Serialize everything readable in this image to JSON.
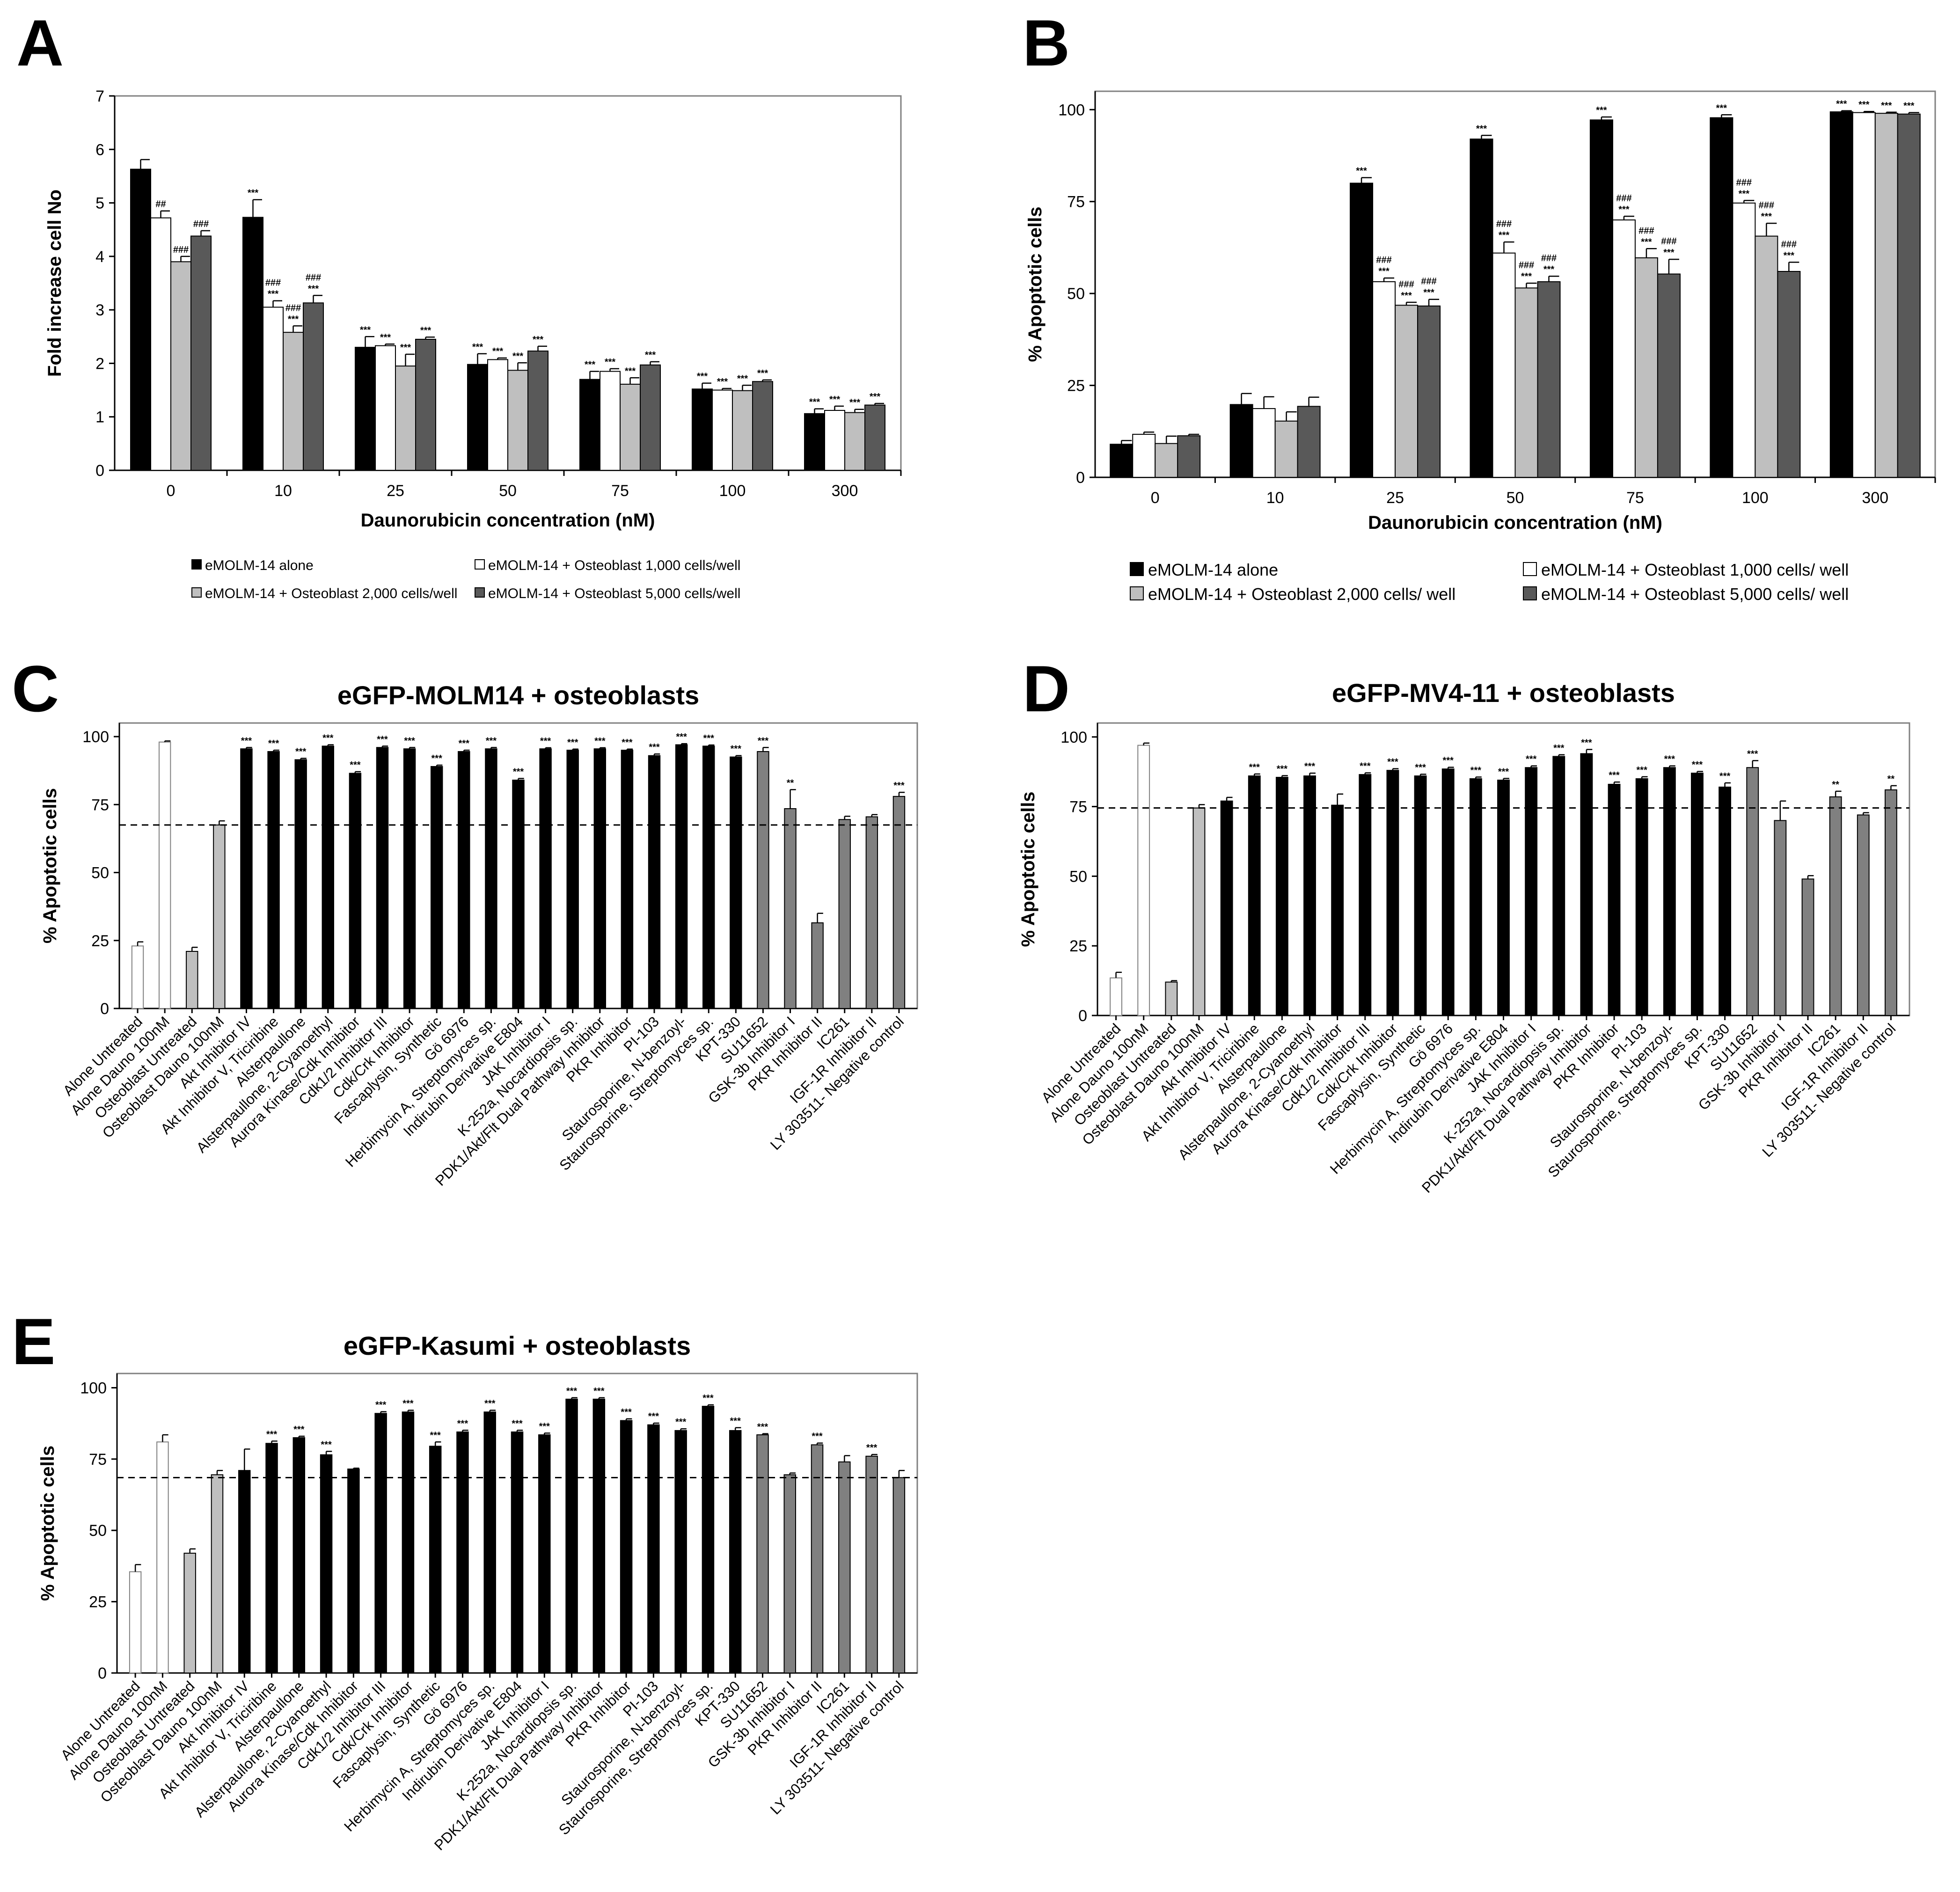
{
  "chart_data": [
    {
      "panel": "A",
      "type": "bar",
      "title": "",
      "xlabel": "Daunorubicin concentration (nM)",
      "ylabel": "Fold increase cell No",
      "ylim": [
        0,
        7
      ],
      "yticks": [
        "0",
        "1",
        "2",
        "3",
        "4",
        "5",
        "6",
        "7"
      ],
      "categories": [
        "0",
        "10",
        "25",
        "50",
        "75",
        "100",
        "300"
      ],
      "series": [
        {
          "name": "eMOLM-14 alone",
          "color": "#000000",
          "values": [
            5.63,
            4.73,
            2.3,
            1.98,
            1.7,
            1.52,
            1.06
          ],
          "errors": [
            0.18,
            0.33,
            0.2,
            0.2,
            0.15,
            0.11,
            0.09
          ],
          "annotations": [
            "",
            "***",
            "***",
            "***",
            "***",
            "***",
            "***"
          ]
        },
        {
          "name": "eMOLM-14 + Osteoblast 1,000 cells/well",
          "color": "#ffffff",
          "values": [
            4.72,
            3.05,
            2.33,
            2.07,
            1.85,
            1.5,
            1.12
          ],
          "errors": [
            0.13,
            0.12,
            0.03,
            0.03,
            0.05,
            0.03,
            0.08
          ],
          "annotations": [
            "##",
            "###\n***",
            "***",
            "***",
            "***",
            "***",
            "***"
          ]
        },
        {
          "name": "eMOLM-14 + Osteoblast 2,000 cells/well",
          "color": "#bfbfbf",
          "values": [
            3.9,
            2.58,
            1.95,
            1.87,
            1.61,
            1.49,
            1.08
          ],
          "errors": [
            0.1,
            0.12,
            0.22,
            0.14,
            0.12,
            0.1,
            0.06
          ],
          "annotations": [
            "###",
            "###\n***",
            "***",
            "***",
            "***",
            "***",
            "***"
          ]
        },
        {
          "name": "eMOLM-14 + Osteoblast 5,000 cells/well",
          "color": "#595959",
          "values": [
            4.38,
            3.13,
            2.45,
            2.23,
            1.97,
            1.66,
            1.22
          ],
          "errors": [
            0.1,
            0.14,
            0.04,
            0.09,
            0.06,
            0.03,
            0.03
          ],
          "annotations": [
            "###",
            "###\n***",
            "***",
            "***",
            "***",
            "***",
            "***"
          ]
        }
      ]
    },
    {
      "panel": "B",
      "type": "bar",
      "title": "",
      "xlabel": "Daunorubicin concentration (nM)",
      "ylabel": "% Apoptotic cells",
      "ylim": [
        0,
        105
      ],
      "yticks": [
        "0",
        "25",
        "50",
        "75",
        "100"
      ],
      "categories": [
        "0",
        "10",
        "25",
        "50",
        "75",
        "100",
        "300"
      ],
      "series": [
        {
          "name": "eMOLM-14 alone",
          "color": "#000000",
          "values": [
            9.0,
            19.8,
            80.0,
            92.0,
            97.2,
            97.8,
            99.4
          ],
          "errors": [
            1.0,
            3.0,
            1.5,
            1.0,
            0.8,
            0.8,
            0.3
          ],
          "annotations": [
            "",
            "",
            "***",
            "***",
            "***",
            "***",
            "***"
          ]
        },
        {
          "name": "eMOLM-14 + Osteoblast 1,000 cells/ well",
          "color": "#ffffff",
          "values": [
            11.7,
            18.7,
            53.2,
            61.0,
            70.0,
            74.6,
            99.2
          ],
          "errors": [
            0.6,
            3.2,
            1.0,
            3.0,
            1.0,
            0.7,
            0.3
          ],
          "annotations": [
            "",
            "",
            "###\n***",
            "###\n***",
            "###\n***",
            "###\n***",
            "***"
          ]
        },
        {
          "name": "eMOLM-14 + Osteoblast 2,000 cells/ well",
          "color": "#bfbfbf",
          "values": [
            9.2,
            15.3,
            46.8,
            51.5,
            59.7,
            65.6,
            99.0
          ],
          "errors": [
            2.0,
            2.5,
            0.8,
            1.3,
            2.5,
            3.5,
            0.3
          ],
          "annotations": [
            "",
            "",
            "###\n***",
            "###\n***",
            "###\n***",
            "###\n***",
            "***"
          ]
        },
        {
          "name": "eMOLM-14 + Osteoblast 5,000 cells/ well",
          "color": "#595959",
          "values": [
            11.3,
            19.3,
            46.6,
            53.2,
            55.3,
            56.0,
            98.8
          ],
          "errors": [
            0.4,
            2.5,
            1.8,
            1.5,
            4.0,
            2.5,
            0.4
          ],
          "annotations": [
            "",
            "",
            "###\n***",
            "###\n***",
            "###\n***",
            "###\n***",
            "***"
          ]
        }
      ]
    },
    {
      "panel": "C",
      "type": "bar",
      "title": "eGFP-MOLM14 + osteoblasts",
      "xlabel": "",
      "ylabel": "% Apoptotic cells",
      "ylim": [
        0,
        105
      ],
      "yticks": [
        "0",
        "25",
        "50",
        "75",
        "100"
      ],
      "reference_line": 67.5,
      "categories": [
        "Alone Untreated",
        "Alone Dauno 100nM",
        "Osteoblast Untreated",
        "Osteoblast Dauno 100nM",
        "Akt Inhibitor IV",
        "Akt Inhibitor V, Triciribine",
        "Alsterpaullone",
        "Alsterpaullone, 2-Cyanoethyl",
        "Aurora Kinase/Cdk Inhibitor",
        "Cdk1/2 Inhibitor III",
        "Cdk/Crk Inhibitor",
        "Fascaplysin, Synthetic",
        "Gö 6976",
        "Herbimycin A, Streptomyces sp.",
        "Indirubin Derivative E804",
        "JAK Inhibitor I",
        "K-252a, Nocardiopsis sp.",
        "PDK1/Akt/Flt Dual Pathway Inhibitor",
        "PKR Inhibitor",
        "PI-103",
        "Staurosporine, N-benzoyl-",
        "Staurosporine, Streptomyces sp.",
        "KPT-330",
        "SU11652",
        "GSK-3b Inhibitor I",
        "PKR Inhibitor II",
        "IC261",
        "IGF-1R Inhibitor II",
        "LY 303511- Negative control"
      ],
      "values": [
        23,
        98,
        21,
        67.5,
        95.5,
        94.5,
        91.5,
        96.5,
        86.5,
        96,
        95.5,
        89,
        94.5,
        95.5,
        84,
        95.5,
        95,
        95.5,
        95,
        93,
        97,
        96.5,
        92.5,
        94.5,
        73.5,
        31.5,
        69.5,
        70.5,
        78
      ],
      "errors": [
        1.5,
        0.4,
        1.5,
        1.5,
        0.5,
        0.5,
        0.5,
        0.5,
        0.6,
        0.5,
        0.5,
        0.5,
        0.5,
        0.5,
        0.6,
        0.4,
        0.4,
        0.4,
        0.4,
        0.6,
        0.4,
        0.4,
        0.5,
        1.5,
        7,
        3.5,
        1.2,
        0.8,
        1.5
      ],
      "annotations": [
        "",
        "",
        "",
        "",
        "***",
        "***",
        "***",
        "***",
        "***",
        "***",
        "***",
        "***",
        "***",
        "***",
        "***",
        "***",
        "***",
        "***",
        "***",
        "***",
        "***",
        "***",
        "***",
        "***",
        "**",
        "",
        "",
        "",
        "***"
      ],
      "colors": [
        "#ffffff",
        "#ffffff",
        "#bfbfbf",
        "#bfbfbf",
        "#000000",
        "#000000",
        "#000000",
        "#000000",
        "#000000",
        "#000000",
        "#000000",
        "#000000",
        "#000000",
        "#000000",
        "#000000",
        "#000000",
        "#000000",
        "#000000",
        "#000000",
        "#000000",
        "#000000",
        "#000000",
        "#000000",
        "#808080",
        "#808080",
        "#808080",
        "#808080",
        "#808080",
        "#808080"
      ]
    },
    {
      "panel": "D",
      "type": "bar",
      "title": "eGFP-MV4-11 + osteoblasts",
      "xlabel": "",
      "ylabel": "% Apoptotic cells",
      "ylim": [
        0,
        105
      ],
      "yticks": [
        "0",
        "25",
        "50",
        "75",
        "100"
      ],
      "reference_line": 74.5,
      "categories": [
        "Alone Untreated",
        "Alone Dauno 100nM",
        "Osteoblast Untreated",
        "Osteoblast Dauno 100nM",
        "Akt Inhibitor IV",
        "Akt Inhibitor V, Triciribine",
        "Alsterpaullone",
        "Alsterpaullone, 2-Cyanoethyl",
        "Aurora Kinase/Cdk Inhibitor",
        "Cdk1/2 Inhibitor III",
        "Cdk/Crk Inhibitor",
        "Fascaplysin, Synthetic",
        "Gö 6976",
        "Herbimycin A, Streptomyces sp.",
        "Indirubin Derivative E804",
        "JAK Inhibitor I",
        "K-252a, Nocardiopsis sp.",
        "PDK1/Akt/Flt Dual Pathway Inhibitor",
        "PKR Inhibitor",
        "PI-103",
        "Staurosporine, N-benzoyl-",
        "Staurosporine, Streptomyces sp.",
        "KPT-330",
        "SU11652",
        "GSK-3b Inhibitor I",
        "PKR Inhibitor II",
        "IC261",
        "IGF-1R Inhibitor II",
        "LY 303511- Negative control"
      ],
      "values": [
        13.5,
        97,
        12,
        74.5,
        77,
        86,
        85.5,
        86,
        75.5,
        86.5,
        88,
        86,
        88.5,
        85,
        84.5,
        89,
        93,
        94,
        83,
        85,
        89,
        87,
        82,
        89,
        70,
        49,
        78.5,
        72,
        81
      ],
      "errors": [
        2,
        0.8,
        0.5,
        1.2,
        1.3,
        0.7,
        0.6,
        1,
        4,
        0.6,
        0.6,
        0.6,
        0.6,
        0.6,
        0.6,
        0.6,
        0.6,
        1.5,
        0.8,
        0.7,
        0.6,
        0.6,
        1.5,
        2.5,
        7,
        1.2,
        2,
        0.8,
        1.5
      ],
      "annotations": [
        "",
        "",
        "",
        "",
        "",
        "***",
        "***",
        "***",
        "",
        "***",
        "***",
        "***",
        "***",
        "***",
        "***",
        "***",
        "***",
        "***",
        "***",
        "***",
        "***",
        "***",
        "***",
        "***",
        "",
        "",
        "**",
        "",
        "**"
      ],
      "colors": [
        "#ffffff",
        "#ffffff",
        "#bfbfbf",
        "#bfbfbf",
        "#000000",
        "#000000",
        "#000000",
        "#000000",
        "#000000",
        "#000000",
        "#000000",
        "#000000",
        "#000000",
        "#000000",
        "#000000",
        "#000000",
        "#000000",
        "#000000",
        "#000000",
        "#000000",
        "#000000",
        "#000000",
        "#000000",
        "#808080",
        "#808080",
        "#808080",
        "#808080",
        "#808080",
        "#808080"
      ]
    },
    {
      "panel": "E",
      "type": "bar",
      "title": "eGFP-Kasumi + osteoblasts",
      "xlabel": "",
      "ylabel": "% Apoptotic cells",
      "ylim": [
        0,
        105
      ],
      "yticks": [
        "0",
        "25",
        "50",
        "75",
        "100"
      ],
      "reference_line": 68.5,
      "categories": [
        "Alone Untreated",
        "Alone Dauno 100nM",
        "Osteoblast Untreated",
        "Osteoblast Dauno 100nM",
        "Akt Inhibitor IV",
        "Akt Inhibitor V, Triciribine",
        "Alsterpaullone",
        "Alsterpaullone, 2-Cyanoethyl",
        "Aurora Kinase/Cdk Inhibitor",
        "Cdk1/2 Inhibitor III",
        "Cdk/Crk Inhibitor",
        "Fascaplysin, Synthetic",
        "Gö 6976",
        "Herbimycin A, Streptomyces sp.",
        "Indirubin Derivative E804",
        "JAK Inhibitor I",
        "K-252a, Nocardiopsis sp.",
        "PDK1/Akt/Flt Dual Pathway Inhibitor",
        "PKR Inhibitor",
        "PI-103",
        "Staurosporine, N-benzoyl-",
        "Staurosporine, Streptomyces sp.",
        "KPT-330",
        "SU11652",
        "GSK-3b Inhibitor I",
        "PKR Inhibitor II",
        "IC261",
        "IGF-1R Inhibitor II",
        "LY 303511- Negative control"
      ],
      "values": [
        35.5,
        81,
        42,
        69.5,
        71,
        80.5,
        82.5,
        76.5,
        71.5,
        91,
        91.5,
        79.5,
        84.5,
        91.5,
        84.5,
        83.5,
        96,
        96,
        88.5,
        87,
        85,
        93.5,
        85,
        83.5,
        69.5,
        80,
        74,
        76,
        68.5
      ],
      "errors": [
        2.5,
        2.5,
        1.5,
        1.5,
        7.5,
        0.8,
        0.5,
        1.2,
        0.3,
        0.6,
        0.6,
        1.5,
        0.6,
        0.6,
        0.6,
        0.6,
        0.5,
        0.5,
        0.6,
        0.6,
        0.6,
        0.5,
        1.0,
        0.4,
        0.6,
        0.6,
        2.2,
        0.6,
        2.5
      ],
      "annotations": [
        "",
        "",
        "",
        "",
        "",
        "***",
        "***",
        "***",
        "",
        "***",
        "***",
        "***",
        "***",
        "***",
        "***",
        "***",
        "***",
        "***",
        "***",
        "***",
        "***",
        "***",
        "***",
        "***",
        "",
        "***",
        "",
        "***",
        ""
      ],
      "colors": [
        "#ffffff",
        "#ffffff",
        "#bfbfbf",
        "#bfbfbf",
        "#000000",
        "#000000",
        "#000000",
        "#000000",
        "#000000",
        "#000000",
        "#000000",
        "#000000",
        "#000000",
        "#000000",
        "#000000",
        "#000000",
        "#000000",
        "#000000",
        "#000000",
        "#000000",
        "#000000",
        "#000000",
        "#000000",
        "#808080",
        "#808080",
        "#808080",
        "#808080",
        "#808080",
        "#808080"
      ]
    }
  ]
}
